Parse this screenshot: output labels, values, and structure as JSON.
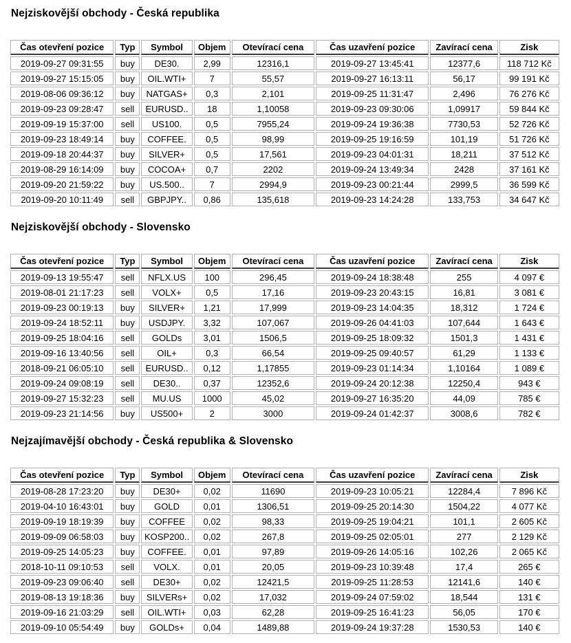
{
  "text_color": "#000000",
  "border_color": "#b0b0b0",
  "header_underline_color": "#3c3c3c",
  "background_color": "#ffffff",
  "sections": [
    {
      "title": "Nejziskovější obchody - Česká republika",
      "columns": [
        "Čas otevření pozice",
        "Typ",
        "Symbol",
        "Objem",
        "Otevírací cena",
        "Čas uzavření pozice",
        "Zavírací cena",
        "Zisk"
      ],
      "rows": [
        [
          "2019-09-27 09:31:55",
          "buy",
          "DE30.",
          "2,99",
          "12316,1",
          "2019-09-27 13:45:41",
          "12377,6",
          "118 712 Kč"
        ],
        [
          "2019-09-27 15:15:05",
          "buy",
          "OIL.WTI+",
          "7",
          "55,57",
          "2019-09-27 16:13:11",
          "56,17",
          "99 191 Kč"
        ],
        [
          "2019-08-06 09:36:12",
          "buy",
          "NATGAS+",
          "0,3",
          "2,101",
          "2019-09-25 11:31:47",
          "2,496",
          "76 276 Kč"
        ],
        [
          "2019-09-23 09:28:47",
          "sell",
          "EURUSD..",
          "18",
          "1,10058",
          "2019-09-23 09:30:06",
          "1,09917",
          "59 844 Kč"
        ],
        [
          "2019-09-19 15:37:00",
          "sell",
          "US100.",
          "0,5",
          "7955,24",
          "2019-09-24 19:36:38",
          "7730,53",
          "52 726 Kč"
        ],
        [
          "2019-09-23 18:49:14",
          "buy",
          "COFFEE.",
          "0,5",
          "98,99",
          "2019-09-25 19:16:59",
          "101,19",
          "51 726 Kč"
        ],
        [
          "2019-09-18 20:44:37",
          "buy",
          "SILVER+",
          "0,5",
          "17,561",
          "2019-09-23 04:01:31",
          "18,211",
          "37 512 Kč"
        ],
        [
          "2019-08-29 16:14:09",
          "buy",
          "COCOA+",
          "0,7",
          "2202",
          "2019-09-24 13:49:34",
          "2428",
          "37 161 Kč"
        ],
        [
          "2019-09-20 21:59:22",
          "buy",
          "US.500..",
          "7",
          "2994,9",
          "2019-09-23 00:21:44",
          "2999,5",
          "36 599 Kč"
        ],
        [
          "2019-09-20 10:11:49",
          "sell",
          "GBPJPY..",
          "0,86",
          "135,618",
          "2019-09-23 14:24:28",
          "133,753",
          "34 647 Kč"
        ]
      ]
    },
    {
      "title": "Nejziskovější obchody - Slovensko",
      "columns": [
        "Čas otevření pozice",
        "Typ",
        "Symbol",
        "Objem",
        "Otevírací cena",
        "Čas uzavření pozice",
        "Zavírací cena",
        "Zisk"
      ],
      "rows": [
        [
          "2019-09-13 19:55:47",
          "sell",
          "NFLX.US",
          "100",
          "296,45",
          "2019-09-24 18:38:48",
          "255",
          "4 097 €"
        ],
        [
          "2019-08-01 21:17:23",
          "sell",
          "VOLX+",
          "0,5",
          "17,16",
          "2019-09-23 20:43:15",
          "16,81",
          "3 081 €"
        ],
        [
          "2019-09-23 00:19:13",
          "buy",
          "SILVER+",
          "1,21",
          "17,999",
          "2019-09-23 14:04:35",
          "18,312",
          "1 724 €"
        ],
        [
          "2019-09-24 18:52:11",
          "buy",
          "USDJPY.",
          "3,32",
          "107,067",
          "2019-09-26 04:41:03",
          "107,644",
          "1 643 €"
        ],
        [
          "2019-09-25 18:04:16",
          "sell",
          "GOLDs",
          "3,01",
          "1506,5",
          "2019-09-25 18:09:32",
          "1501,3",
          "1 431 €"
        ],
        [
          "2019-09-16 13:40:56",
          "sell",
          "OIL+",
          "0,3",
          "66,54",
          "2019-09-25 09:40:57",
          "61,29",
          "1 133 €"
        ],
        [
          "2018-09-21 06:05:10",
          "sell",
          "EURUSD..",
          "0,12",
          "1,17855",
          "2019-09-23 01:14:34",
          "1,10164",
          "1 089 €"
        ],
        [
          "2019-09-24 09:08:19",
          "sell",
          "DE30..",
          "0,37",
          "12352,6",
          "2019-09-24 20:12:38",
          "12250,4",
          "943 €"
        ],
        [
          "2019-09-27 15:32:23",
          "sell",
          "MU.US",
          "1000",
          "45,02",
          "2019-09-27 16:35:20",
          "44,09",
          "785 €"
        ],
        [
          "2019-09-23 21:14:56",
          "buy",
          "US500+",
          "2",
          "3000",
          "2019-09-24 01:42:37",
          "3008,6",
          "782 €"
        ]
      ]
    },
    {
      "title": "Nejzajímavější obchody - Česká republika & Slovensko",
      "columns": [
        "Čas otevření pozice",
        "Typ",
        "Symbol",
        "Objem",
        "Otevírací cena",
        "Čas uzavření pozice",
        "Zavírací cena",
        "Zisk"
      ],
      "rows": [
        [
          "2019-08-28 17:23:20",
          "buy",
          "DE30+",
          "0,02",
          "11690",
          "2019-09-23 10:05:21",
          "12284,4",
          "7 896 Kč"
        ],
        [
          "2019-04-10 16:43:01",
          "buy",
          "GOLD",
          "0,01",
          "1306,51",
          "2019-09-25 20:14:30",
          "1504,22",
          "4 077 Kč"
        ],
        [
          "2019-09-19 18:19:39",
          "buy",
          "COFFEE",
          "0,02",
          "98,33",
          "2019-09-25 19:04:21",
          "101,1",
          "2 605 Kč"
        ],
        [
          "2019-09-09 06:58:03",
          "buy",
          "KOSP200..",
          "0,02",
          "267,8",
          "2019-09-25 02:05:01",
          "277",
          "2 129 Kč"
        ],
        [
          "2019-09-25 14:05:23",
          "buy",
          "COFFEE.",
          "0,01",
          "97,89",
          "2019-09-26 14:05:16",
          "102,26",
          "2 065 Kč"
        ],
        [
          "2018-10-11 09:10:53",
          "sell",
          "VOLX.",
          "0,01",
          "20,05",
          "2019-09-23 10:39:48",
          "17,4",
          "265 €"
        ],
        [
          "2019-09-23 09:06:40",
          "sell",
          "DE30+",
          "0,02",
          "12421,5",
          "2019-09-25 11:28:53",
          "12141,6",
          "140 €"
        ],
        [
          "2019-08-13 19:18:36",
          "buy",
          "SILVERs+",
          "0,02",
          "17,032",
          "2019-09-24 07:59:02",
          "18,544",
          "131 €"
        ],
        [
          "2019-09-16 21:03:29",
          "sell",
          "OIL.WTI+",
          "0,03",
          "62,28",
          "2019-09-25 16:41:23",
          "56,05",
          "170 €"
        ],
        [
          "2019-09-10 05:54:49",
          "buy",
          "GOLDs+",
          "0,04",
          "1489,88",
          "2019-09-24 19:37:28",
          "1530,53",
          "140 €"
        ]
      ]
    }
  ]
}
